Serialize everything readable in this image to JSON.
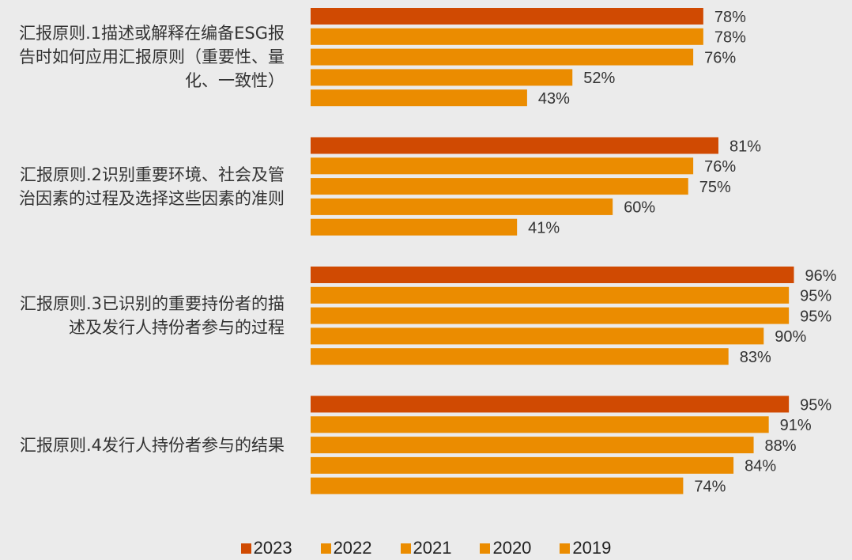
{
  "chart_data": {
    "type": "bar",
    "orientation": "horizontal",
    "categories": [
      "汇报原则.1描述或解释在编备ESG报告时如何应用汇报原则（重要性、量化、一致性）",
      "汇报原则.2识别重要环境、社会及管治因素的过程及选择这些因素的准则",
      "汇报原则.3已识别的重要持份者的描述及发行人持份者参与的过程",
      "汇报原则.4发行人持份者参与的结果"
    ],
    "series": [
      {
        "name": "2023",
        "color": "#d04a02",
        "values": [
          78,
          81,
          96,
          95
        ],
        "value_labels": [
          "78%",
          "81%",
          "96%",
          "95%"
        ]
      },
      {
        "name": "2022",
        "color": "#eb8c00",
        "values": [
          78,
          76,
          95,
          91
        ],
        "value_labels": [
          "78%",
          "76%",
          "95%",
          "91%"
        ]
      },
      {
        "name": "2021",
        "color": "#eb8c00",
        "values": [
          76,
          75,
          95,
          88
        ],
        "value_labels": [
          "76%",
          "75%",
          "95%",
          "88%"
        ]
      },
      {
        "name": "2020",
        "color": "#eb8c00",
        "values": [
          52,
          60,
          90,
          84
        ],
        "value_labels": [
          "52%",
          "60%",
          "90%",
          "84%"
        ]
      },
      {
        "name": "2019",
        "color": "#eb8c00",
        "values": [
          43,
          41,
          83,
          74
        ],
        "value_labels": [
          "43%",
          "41%",
          "83%",
          "74%"
        ]
      }
    ],
    "xlim": [
      0,
      100
    ],
    "legend": "bottom"
  }
}
